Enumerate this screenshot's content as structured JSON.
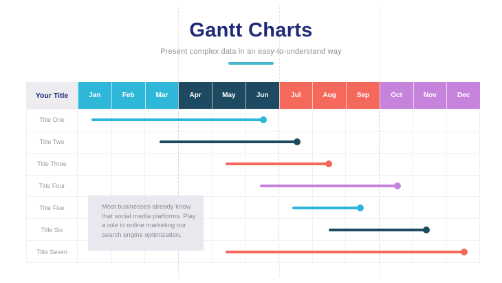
{
  "header": {
    "title": "Gantt Charts",
    "subtitle": "Present complex data in an easy-to-understand way",
    "title_color": "#1E2A76",
    "accent_color": "#45B8CE"
  },
  "gantt": {
    "corner_label": "Your Title",
    "months": [
      {
        "label": "Jan",
        "color": "#2FB7D9"
      },
      {
        "label": "Feb",
        "color": "#2FB7D9"
      },
      {
        "label": "Mar",
        "color": "#2FB7D9"
      },
      {
        "label": "Apr",
        "color": "#1D4A60"
      },
      {
        "label": "May",
        "color": "#1D4A60"
      },
      {
        "label": "Jun",
        "color": "#1D4A60"
      },
      {
        "label": "Jul",
        "color": "#F4695C"
      },
      {
        "label": "Aug",
        "color": "#F4695C"
      },
      {
        "label": "Sep",
        "color": "#F4695C"
      },
      {
        "label": "Oct",
        "color": "#C583DB"
      },
      {
        "label": "Nov",
        "color": "#C583DB"
      },
      {
        "label": "Dec",
        "color": "#C583DB"
      }
    ],
    "quarter_lines_after_month": [
      3,
      6,
      9
    ]
  },
  "note": {
    "text": "Most businesses already know that social media platforms. Play a role in online marketing our search engine optimization."
  },
  "chart_data": {
    "type": "bar",
    "subtype": "gantt",
    "title": "Gantt Charts",
    "x": {
      "unit": "month",
      "labels": [
        "Jan",
        "Feb",
        "Mar",
        "Apr",
        "May",
        "Jun",
        "Jul",
        "Aug",
        "Sep",
        "Oct",
        "Nov",
        "Dec"
      ],
      "range": [
        0,
        12
      ]
    },
    "tasks": [
      {
        "name": "Title One",
        "start": 0.41,
        "end": 5.54,
        "start_label": "mid-Jan",
        "end_label": "mid-Jun",
        "color": "#2CB7D8"
      },
      {
        "name": "Title Two",
        "start": 2.45,
        "end": 6.55,
        "start_label": "mid-Mar",
        "end_label": "mid-Jul",
        "color": "#1C4A60"
      },
      {
        "name": "Title Three",
        "start": 4.41,
        "end": 7.49,
        "start_label": "mid-May",
        "end_label": "mid-Aug",
        "color": "#F4695C"
      },
      {
        "name": "Title Four",
        "start": 5.44,
        "end": 9.54,
        "start_label": "mid-Jun",
        "end_label": "mid-Oct",
        "color": "#C583DB"
      },
      {
        "name": "Title Five",
        "start": 6.4,
        "end": 8.43,
        "start_label": "mid-Jul",
        "end_label": "mid-Sep",
        "color": "#2CB7D8"
      },
      {
        "name": "Title Six",
        "start": 7.49,
        "end": 10.4,
        "start_label": "mid-Aug",
        "end_label": "mid-Nov",
        "color": "#1C4A60"
      },
      {
        "name": "Title Seven",
        "start": 4.41,
        "end": 11.53,
        "start_label": "mid-May",
        "end_label": "mid-Dec",
        "color": "#F4695C"
      }
    ]
  }
}
